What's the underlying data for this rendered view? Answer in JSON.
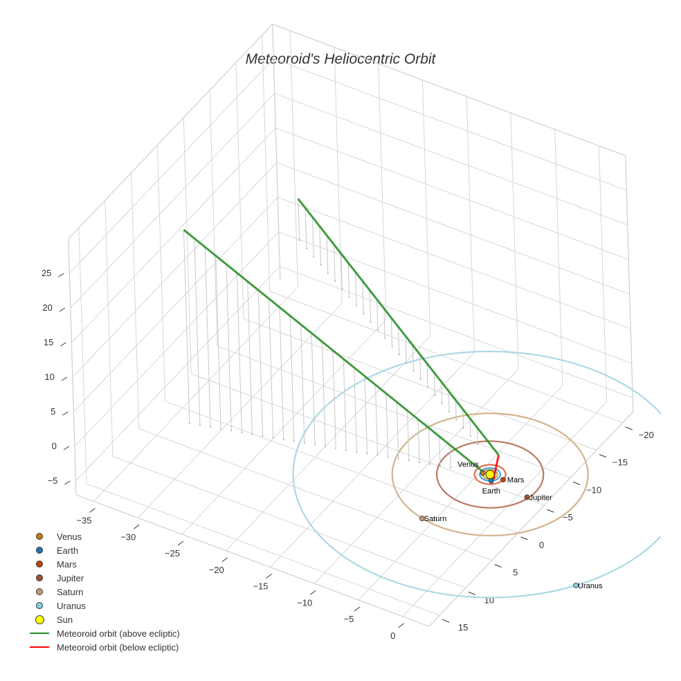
{
  "chart_data": {
    "type": "scatter3d",
    "title": "Meteoroid's Heliocentric Orbit",
    "axes": {
      "x": {
        "range": [
          -37,
          3
        ],
        "ticks": [
          -35,
          -30,
          -25,
          -20,
          -15,
          -10,
          -5,
          0
        ]
      },
      "y": {
        "range": [
          -22,
          17
        ],
        "ticks": [
          -20,
          -15,
          -10,
          -5,
          0,
          5,
          10,
          15
        ]
      },
      "z": {
        "range": [
          -7,
          30
        ],
        "ticks": [
          -5,
          0,
          5,
          10,
          15,
          20,
          25
        ]
      }
    },
    "grid": true,
    "legend_position": "bottom-left",
    "planets": [
      {
        "name": "Venus",
        "color": "#c97a16",
        "orbit_color": "#c9a23a",
        "radius": 0.72,
        "pos": [
          -0.72,
          0.16,
          0
        ]
      },
      {
        "name": "Earth",
        "color": "#1f77b4",
        "orbit_color": "#4aa3d6",
        "radius": 1.0,
        "pos": [
          0.6,
          0.8,
          0
        ]
      },
      {
        "name": "Mars",
        "color": "#c2410c",
        "orbit_color": "#e0704e",
        "radius": 1.52,
        "pos": [
          1.5,
          0.05,
          0
        ]
      },
      {
        "name": "Jupiter",
        "color": "#a0522d",
        "orbit_color": "#b87a60",
        "radius": 5.2,
        "pos": [
          4.9,
          1.2,
          0
        ]
      },
      {
        "name": "Saturn",
        "color": "#c49a74",
        "orbit_color": "#d2b48c",
        "radius": 9.54,
        "pos": [
          -2.2,
          9.3,
          0
        ]
      },
      {
        "name": "Uranus",
        "color": "#87cfe0",
        "orbit_color": "#add8e6",
        "radius": 19.2,
        "pos": [
          16.0,
          10.6,
          0
        ]
      }
    ],
    "sun": {
      "name": "Sun",
      "color": "#ffff00",
      "pos": [
        0,
        0,
        0
      ]
    },
    "meteoroid": {
      "above": {
        "name": "Meteoroid orbit (above ecliptic)",
        "color": "#228b22",
        "arms": [
          [
            [
              -29.2,
              8.2,
              28
            ],
            [
              -0.8,
              0.2,
              0.3
            ]
          ],
          [
            [
              -34.6,
              -21.9,
              6
            ],
            [
              0.3,
              -1.2,
              2.0
            ]
          ]
        ]
      },
      "below": {
        "name": "Meteoroid orbit (below ecliptic)",
        "color": "#ff0000",
        "points": [
          [
            0.3,
            -1.2,
            2.0
          ],
          [
            0.5,
            0.2,
            -0.3
          ]
        ]
      }
    }
  },
  "legend": [
    {
      "label": "Venus",
      "kind": "dot",
      "color": "#c97a16"
    },
    {
      "label": "Earth",
      "kind": "dot",
      "color": "#1f77b4"
    },
    {
      "label": "Mars",
      "kind": "dot",
      "color": "#c2410c"
    },
    {
      "label": "Jupiter",
      "kind": "dot",
      "color": "#a0522d"
    },
    {
      "label": "Saturn",
      "kind": "dot",
      "color": "#c49a74"
    },
    {
      "label": "Uranus",
      "kind": "dot",
      "color": "#87cfe0"
    },
    {
      "label": "Sun",
      "kind": "big",
      "color": "#ffff00"
    },
    {
      "label": "Meteoroid orbit (above ecliptic)",
      "kind": "line",
      "color": "#228b22"
    },
    {
      "label": "Meteoroid orbit (below ecliptic)",
      "kind": "line",
      "color": "#ff0000"
    }
  ]
}
